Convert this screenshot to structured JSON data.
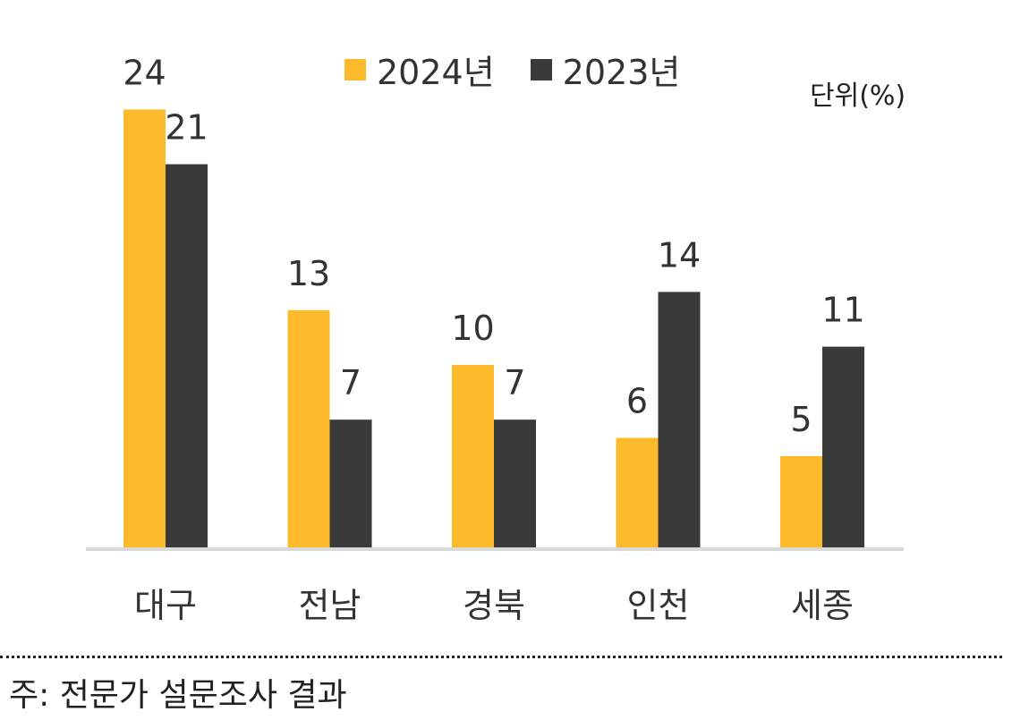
{
  "chart_data": {
    "type": "bar",
    "categories": [
      "대구",
      "전남",
      "경북",
      "인천",
      "세종"
    ],
    "series": [
      {
        "name": "2024년",
        "values": [
          24,
          13,
          10,
          6,
          5
        ],
        "color": "#FDBA2C"
      },
      {
        "name": "2023년",
        "values": [
          21,
          7,
          7,
          14,
          11
        ],
        "color": "#3A3A3A"
      }
    ],
    "title": "",
    "xlabel": "",
    "ylabel": "",
    "ylim": [
      0,
      26
    ],
    "grid": false,
    "legend_position": "top-center",
    "unit_label": "단위(%)"
  },
  "footnote": "주: 전문가 설문조사 결과"
}
